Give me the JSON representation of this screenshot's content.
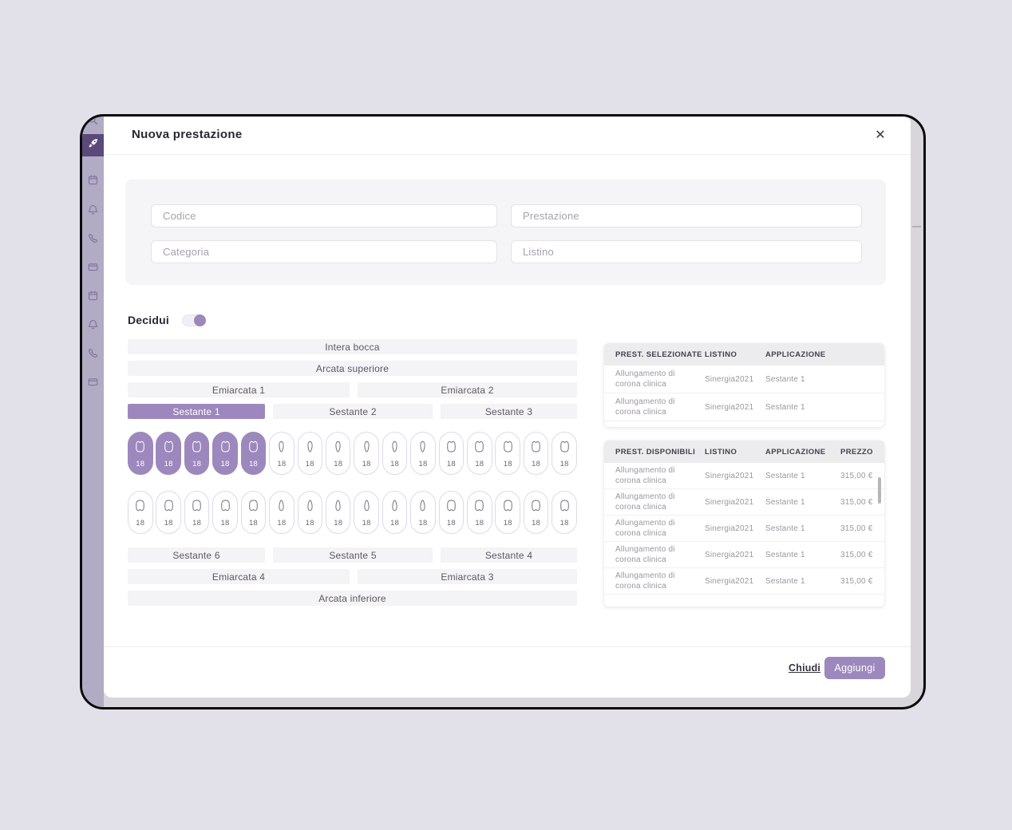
{
  "colors": {
    "accent": "#9d88bd",
    "sidebar": "#b2abc4",
    "sidebar_active": "#5b4979",
    "frame_border": "#0b0b0b",
    "background": "#e2e0e9"
  },
  "sidebar": {
    "items": [
      {
        "icon": "search-icon",
        "active": false
      },
      {
        "icon": "rocket-icon",
        "active": true
      },
      {
        "icon": "calendar-icon",
        "active": false
      },
      {
        "icon": "bell-icon",
        "active": false
      },
      {
        "icon": "phone-icon",
        "active": false
      },
      {
        "icon": "credit-card-icon",
        "active": false
      },
      {
        "icon": "calendar-icon",
        "active": false
      },
      {
        "icon": "bell-icon",
        "active": false
      },
      {
        "icon": "phone-icon",
        "active": false
      },
      {
        "icon": "credit-card-icon",
        "active": false
      }
    ]
  },
  "modal": {
    "title": "Nuova prestazione",
    "close_icon": "✕"
  },
  "form": {
    "fields": [
      {
        "name": "codice",
        "placeholder": "Codice",
        "value": ""
      },
      {
        "name": "prestazione",
        "placeholder": "Prestazione",
        "value": ""
      },
      {
        "name": "categoria",
        "placeholder": "Categoria",
        "value": ""
      },
      {
        "name": "listino",
        "placeholder": "Listino",
        "value": ""
      }
    ]
  },
  "decidui": {
    "label": "Decidui",
    "on": true
  },
  "mouth": {
    "bars_top": [
      {
        "label": "Intera bocca"
      },
      {
        "label": "Arcata superiore"
      }
    ],
    "emiarcate_top": [
      {
        "label": "Emiarcata 1"
      },
      {
        "label": "Emiarcata 2"
      }
    ],
    "sestanti_top": [
      {
        "label": "Sestante 1",
        "selected": true
      },
      {
        "label": "Sestante 2",
        "selected": false
      },
      {
        "label": "Sestante 3",
        "selected": false
      }
    ],
    "teeth_upper": [
      {
        "label": "18",
        "type": "molar-up",
        "selected": true
      },
      {
        "label": "18",
        "type": "molar-up",
        "selected": true
      },
      {
        "label": "18",
        "type": "molar-up",
        "selected": true
      },
      {
        "label": "18",
        "type": "molar-up",
        "selected": true
      },
      {
        "label": "18",
        "type": "molar-up",
        "selected": true
      },
      {
        "label": "18",
        "type": "front-up",
        "selected": false
      },
      {
        "label": "18",
        "type": "front-up",
        "selected": false
      },
      {
        "label": "18",
        "type": "front-up",
        "selected": false
      },
      {
        "label": "18",
        "type": "front-up",
        "selected": false
      },
      {
        "label": "18",
        "type": "front-up",
        "selected": false
      },
      {
        "label": "18",
        "type": "front-up",
        "selected": false
      },
      {
        "label": "18",
        "type": "molar-up",
        "selected": false
      },
      {
        "label": "18",
        "type": "molar-up",
        "selected": false
      },
      {
        "label": "18",
        "type": "molar-up",
        "selected": false
      },
      {
        "label": "18",
        "type": "molar-up",
        "selected": false
      },
      {
        "label": "18",
        "type": "molar-up",
        "selected": false
      }
    ],
    "teeth_lower": [
      {
        "label": "18",
        "type": "molar-down",
        "selected": false
      },
      {
        "label": "18",
        "type": "molar-down",
        "selected": false
      },
      {
        "label": "18",
        "type": "molar-down",
        "selected": false
      },
      {
        "label": "18",
        "type": "molar-down",
        "selected": false
      },
      {
        "label": "18",
        "type": "molar-down",
        "selected": false
      },
      {
        "label": "18",
        "type": "front-down",
        "selected": false
      },
      {
        "label": "18",
        "type": "front-down",
        "selected": false
      },
      {
        "label": "18",
        "type": "front-down",
        "selected": false
      },
      {
        "label": "18",
        "type": "front-down",
        "selected": false
      },
      {
        "label": "18",
        "type": "front-down",
        "selected": false
      },
      {
        "label": "18",
        "type": "front-down",
        "selected": false
      },
      {
        "label": "18",
        "type": "molar-down",
        "selected": false
      },
      {
        "label": "18",
        "type": "molar-down",
        "selected": false
      },
      {
        "label": "18",
        "type": "molar-down",
        "selected": false
      },
      {
        "label": "18",
        "type": "molar-down",
        "selected": false
      },
      {
        "label": "18",
        "type": "molar-down",
        "selected": false
      }
    ],
    "sestanti_bottom": [
      {
        "label": "Sestante 6"
      },
      {
        "label": "Sestante 5"
      },
      {
        "label": "Sestante 4"
      }
    ],
    "emiarcate_bottom": [
      {
        "label": "Emiarcata 4"
      },
      {
        "label": "Emiarcata 3"
      }
    ],
    "bars_bottom": [
      {
        "label": "Arcata inferiore"
      }
    ]
  },
  "selected_table": {
    "headers": [
      "PREST. SELEZIONATE",
      "LISTINO",
      "APPLICAZIONE"
    ],
    "rows": [
      {
        "prestazione": "Allungamento di corona clinica",
        "listino": "Sinergia2021",
        "applicazione": "Sestante 1"
      },
      {
        "prestazione": "Allungamento di corona clinica",
        "listino": "Sinergia2021",
        "applicazione": "Sestante 1"
      }
    ]
  },
  "available_table": {
    "headers": [
      "PREST. DISPONIBILI",
      "LISTINO",
      "APPLICAZIONE",
      "PREZZO"
    ],
    "rows": [
      {
        "prestazione": "Allungamento di corona clinica",
        "listino": "Sinergia2021",
        "applicazione": "Sestante 1",
        "prezzo": "315,00 €"
      },
      {
        "prestazione": "Allungamento di corona clinica",
        "listino": "Sinergia2021",
        "applicazione": "Sestante 1",
        "prezzo": "315,00 €"
      },
      {
        "prestazione": "Allungamento di corona clinica",
        "listino": "Sinergia2021",
        "applicazione": "Sestante 1",
        "prezzo": "315,00 €"
      },
      {
        "prestazione": "Allungamento di corona clinica",
        "listino": "Sinergia2021",
        "applicazione": "Sestante 1",
        "prezzo": "315,00 €"
      },
      {
        "prestazione": "Allungamento di corona clinica",
        "listino": "Sinergia2021",
        "applicazione": "Sestante 1",
        "prezzo": "315,00 €"
      }
    ]
  },
  "footer": {
    "close": "Chiudi",
    "add": "Aggiungi"
  }
}
